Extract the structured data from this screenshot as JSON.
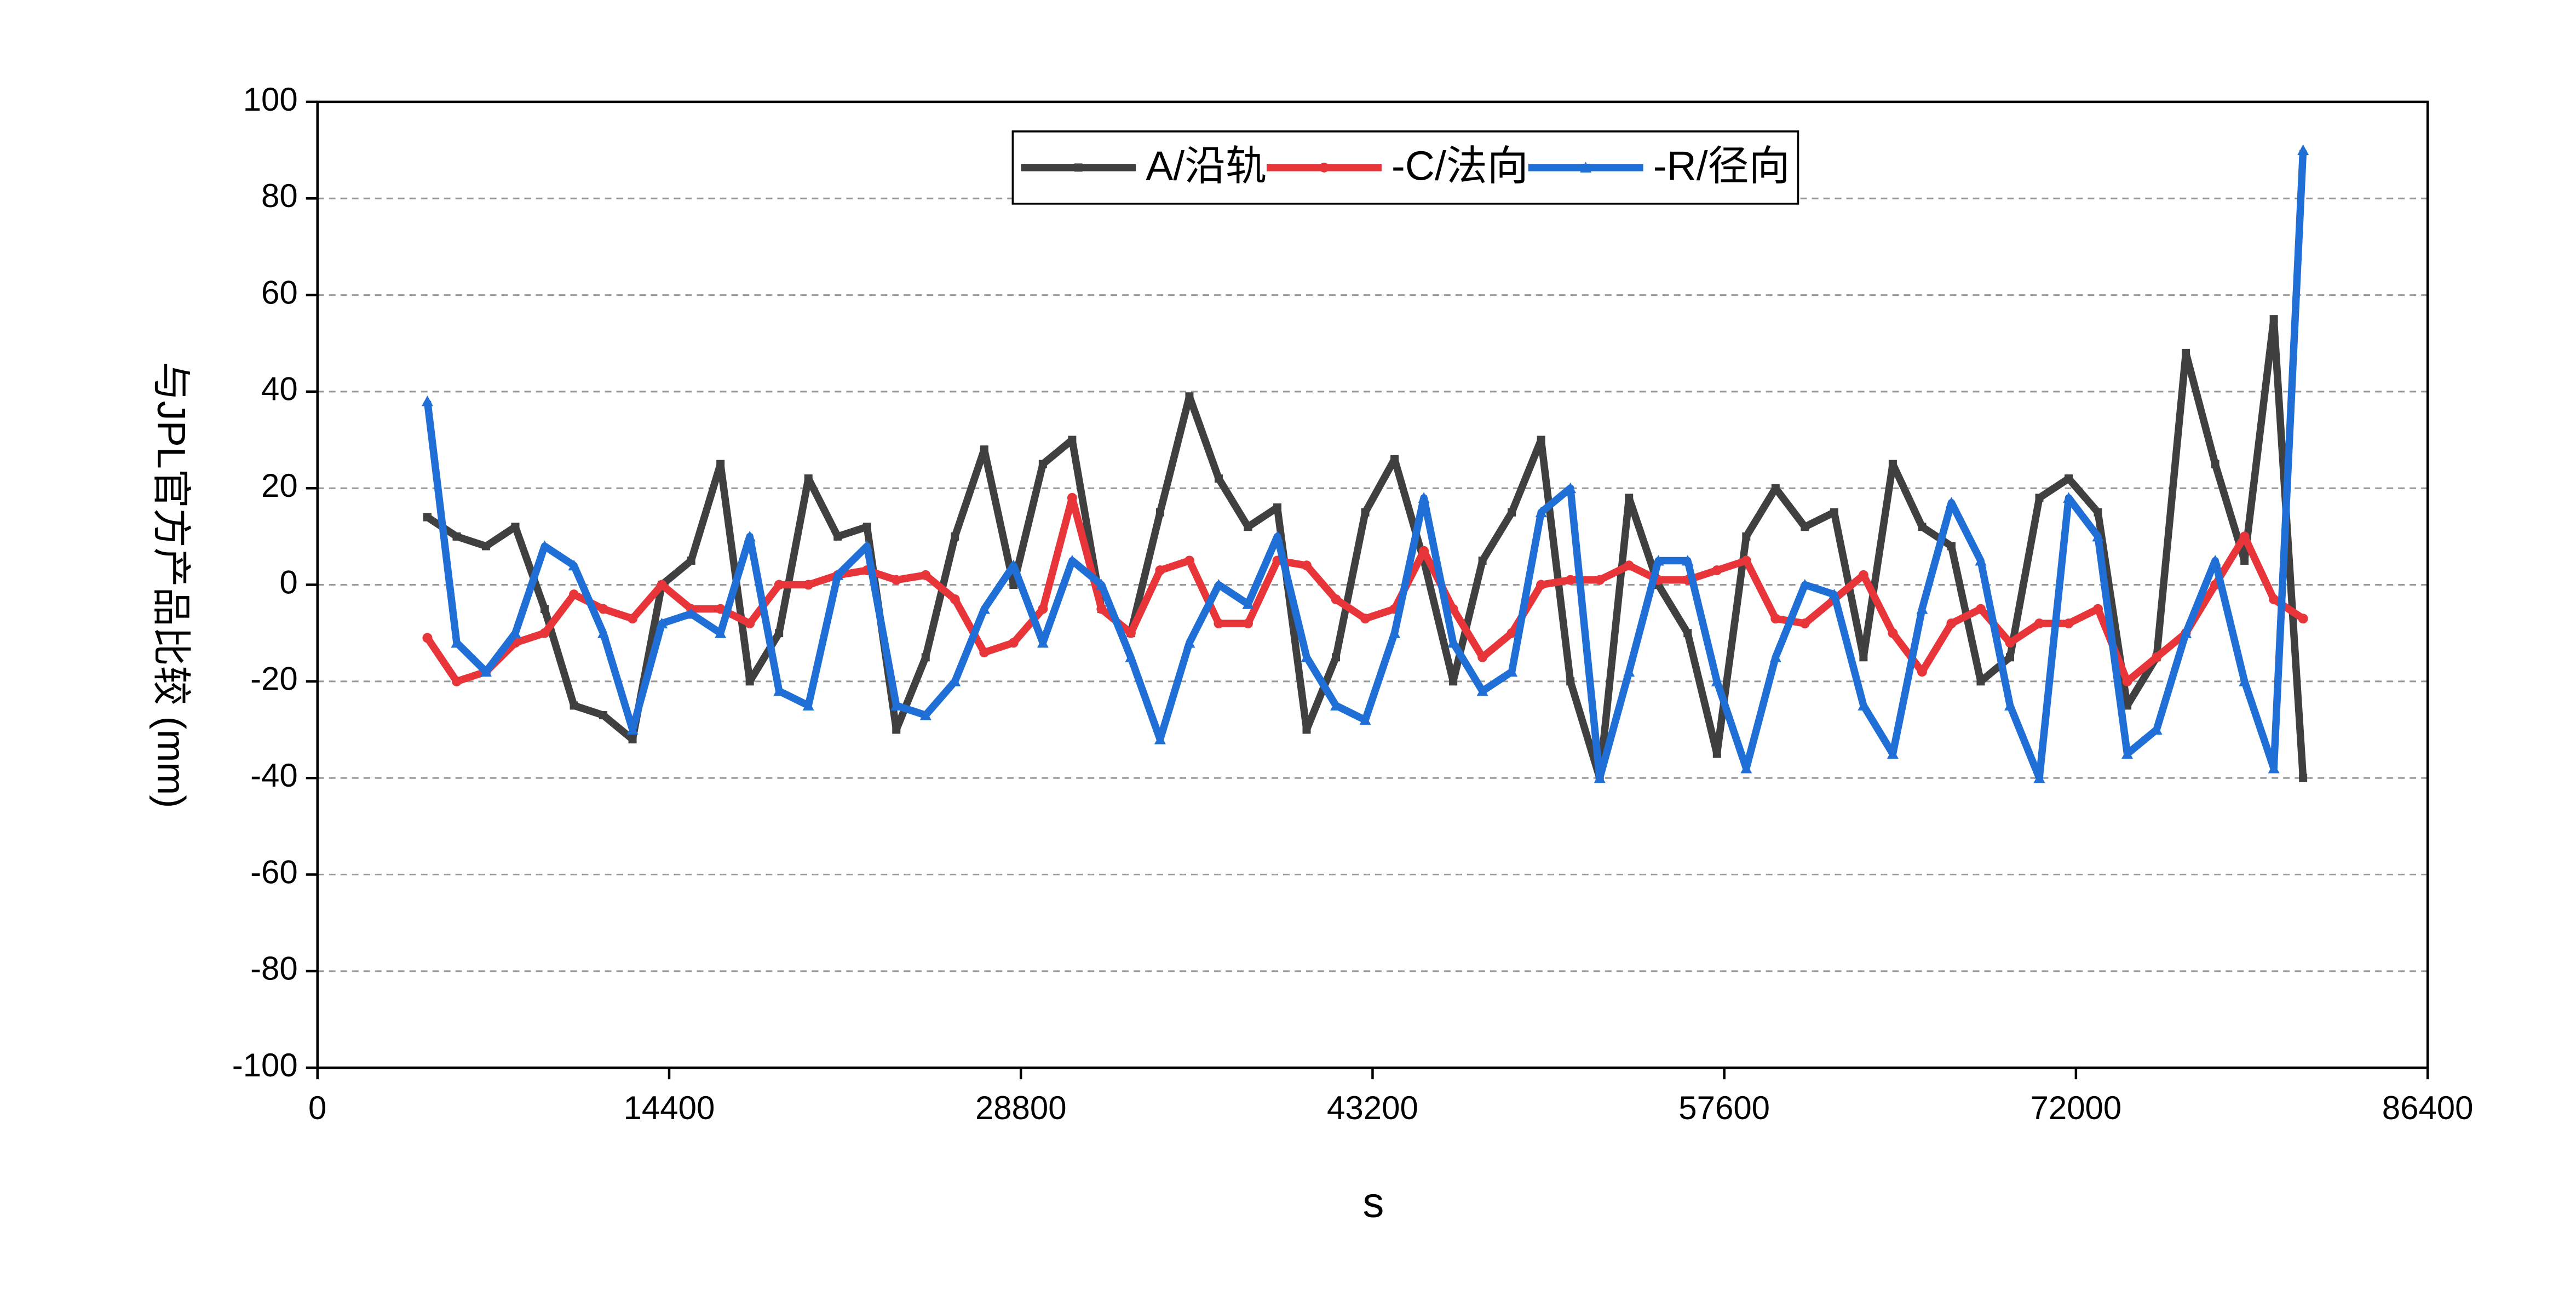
{
  "chart_data": {
    "type": "line",
    "x_label": "s",
    "y_label": "与JPL官方产品比较 (mm)",
    "xlim": [
      0,
      86400
    ],
    "xticks": [
      0,
      14400,
      28800,
      43200,
      57600,
      72000,
      86400
    ],
    "ylim": [
      -100,
      100
    ],
    "yticks": [
      -100,
      -80,
      -60,
      -40,
      -20,
      0,
      20,
      40,
      60,
      80,
      100
    ],
    "grid": true,
    "legend": "upper center",
    "x": [
      4500,
      5700,
      6900,
      8100,
      9300,
      10500,
      11700,
      12900,
      14100,
      15300,
      16500,
      17700,
      18900,
      20100,
      21300,
      22500,
      23700,
      24900,
      26100,
      27300,
      28500,
      29700,
      30900,
      32100,
      33300,
      34500,
      35700,
      36900,
      38100,
      39300,
      40500,
      41700,
      42900,
      44100,
      45300,
      46500,
      47700,
      48900,
      50100,
      51300,
      52500,
      53700,
      54900,
      56100,
      57300,
      58500,
      59700,
      60900,
      62100,
      63300,
      64500,
      65700,
      66900,
      68100,
      69300,
      70500,
      71700,
      72900,
      74100,
      75300,
      76500,
      77700,
      78900,
      80100,
      81300
    ],
    "series": [
      {
        "name": "A/沿轨",
        "color": "#404040",
        "marker": "square",
        "values": [
          14,
          10,
          8,
          12,
          -5,
          -25,
          -27,
          -32,
          0,
          5,
          25,
          -20,
          -10,
          22,
          10,
          12,
          -30,
          -15,
          10,
          28,
          0,
          25,
          30,
          -5,
          -10,
          15,
          39,
          22,
          12,
          16,
          -30,
          -15,
          15,
          26,
          5,
          -20,
          5,
          15,
          30,
          -20,
          -40,
          18,
          0,
          -10,
          -35,
          10,
          20,
          12,
          15,
          -15,
          25,
          12,
          8,
          -20,
          -15,
          18,
          22,
          15,
          -25,
          -15,
          48,
          25,
          5,
          55,
          -40
        ]
      },
      {
        "name": "-C/法向",
        "color": "#e8353a",
        "marker": "circle",
        "values": [
          -11,
          -20,
          -18,
          -12,
          -10,
          -2,
          -5,
          -7,
          0,
          -5,
          -5,
          -8,
          0,
          0,
          2,
          3,
          1,
          2,
          -3,
          -14,
          -12,
          -5,
          18,
          -5,
          -10,
          3,
          5,
          -8,
          -8,
          5,
          4,
          -3,
          -7,
          -5,
          7,
          -5,
          -15,
          -10,
          0,
          1,
          1,
          4,
          1,
          1,
          3,
          5,
          -7,
          -8,
          -3,
          2,
          -10,
          -18,
          -8,
          -5,
          -12,
          -8,
          -8,
          -5,
          -20,
          -15,
          -10,
          0,
          10,
          -3,
          -7
        ]
      },
      {
        "name": "-R/径向",
        "color": "#1f6fd6",
        "marker": "triangle",
        "values": [
          38,
          -12,
          -18,
          -10,
          8,
          4,
          -10,
          -30,
          -8,
          -6,
          -10,
          10,
          -22,
          -25,
          2,
          8,
          -25,
          -27,
          -20,
          -5,
          4,
          -12,
          5,
          0,
          -15,
          -32,
          -12,
          0,
          -4,
          10,
          -15,
          -25,
          -28,
          -10,
          18,
          -12,
          -22,
          -18,
          15,
          20,
          -40,
          -18,
          5,
          5,
          -20,
          -38,
          -15,
          0,
          -2,
          -25,
          -35,
          -5,
          17,
          5,
          -25,
          -40,
          18,
          10,
          -35,
          -30,
          -10,
          5,
          -20,
          -38,
          90
        ]
      }
    ]
  }
}
